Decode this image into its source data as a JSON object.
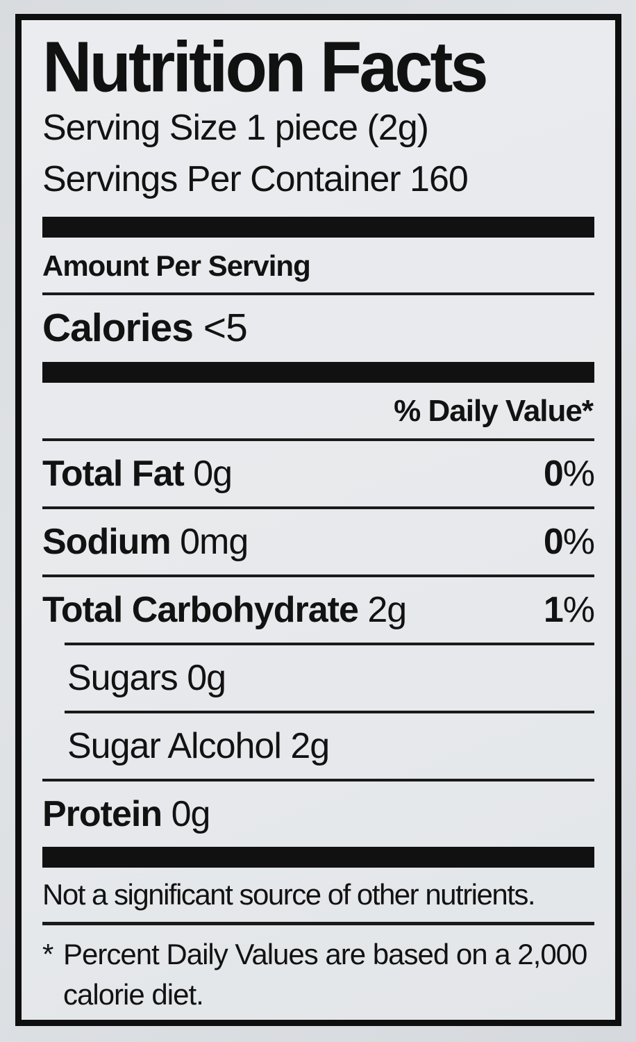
{
  "label": {
    "title": "Nutrition Facts",
    "serving_size": "Serving Size 1 piece (2g)",
    "servings_per_container": "Servings Per Container 160",
    "amount_per_serving": "Amount Per Serving",
    "calories_label": "Calories",
    "calories_value": "<5",
    "daily_value_header": "% Daily Value*",
    "rows": [
      {
        "name": "Total Fat",
        "amount": "0g",
        "dv_num": "0",
        "dv_sign": "%",
        "bold": true,
        "indent": false,
        "rule_after": "full"
      },
      {
        "name": "Sodium",
        "amount": "0mg",
        "dv_num": "0",
        "dv_sign": "%",
        "bold": true,
        "indent": false,
        "rule_after": "full"
      },
      {
        "name": "Total Carbohydrate",
        "amount": "2g",
        "dv_num": "1",
        "dv_sign": "%",
        "bold": true,
        "indent": false,
        "rule_after": "indent"
      },
      {
        "name": "Sugars",
        "amount": "0g",
        "dv_num": "",
        "dv_sign": "",
        "bold": false,
        "indent": true,
        "rule_after": "indent"
      },
      {
        "name": "Sugar Alcohol",
        "amount": "2g",
        "dv_num": "",
        "dv_sign": "",
        "bold": false,
        "indent": true,
        "rule_after": "full"
      },
      {
        "name": "Protein",
        "amount": "0g",
        "dv_num": "",
        "dv_sign": "",
        "bold": true,
        "indent": false,
        "rule_after": "none"
      }
    ],
    "note": "Not a significant source of other nutrients.",
    "footnote_marker": "*",
    "footnote": "Percent Daily Values are based on a 2,000 calorie diet."
  }
}
